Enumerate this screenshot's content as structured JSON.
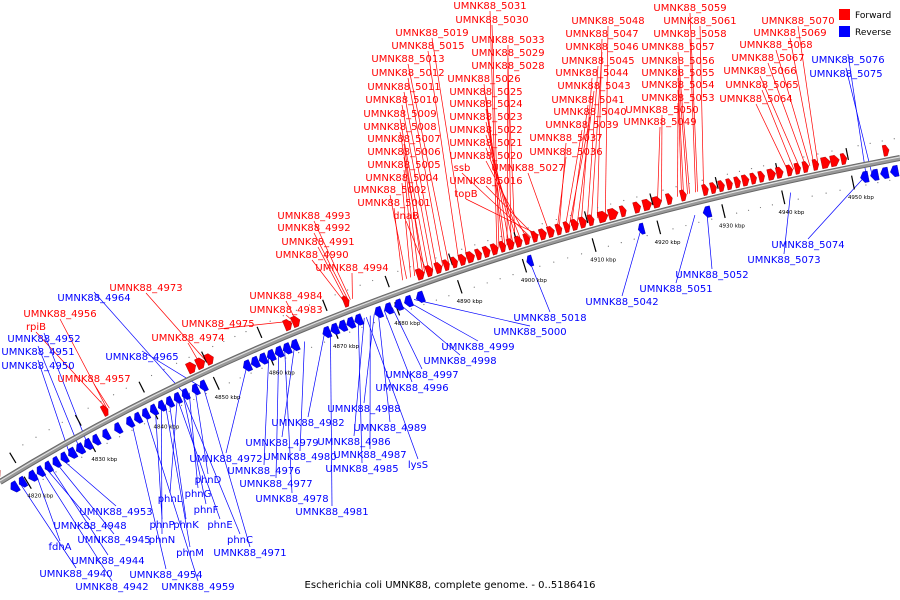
{
  "caption": "Escherichia coli UMNK88, complete genome. - 0..5186416",
  "legend": [
    {
      "label": "Forward",
      "color": "#ff0000"
    },
    {
      "label": "Reverse",
      "color": "#0000ff"
    }
  ],
  "colors": {
    "forward": "#ff0000",
    "reverse": "#0000ff",
    "backbone": "#999999"
  },
  "ticks": [
    "4820 kbp",
    "4830 kbp",
    "4840 kbp",
    "4850 kbp",
    "4860 kbp",
    "4870 kbp",
    "4880 kbp",
    "4890 kbp",
    "4900 kbp",
    "4910 kbp",
    "4920 kbp",
    "4930 kbp",
    "4940 kbp",
    "4950 kbp"
  ],
  "forward_labels": [
    "UMNK88_5031",
    "UMNK88_5030",
    "UMNK88_5059",
    "UMNK88_5048",
    "UMNK88_5061",
    "UMNK88_5070",
    "UMNK88_5019",
    "UMNK88_5047",
    "UMNK88_5058",
    "UMNK88_5069",
    "UMNK88_5033",
    "UMNK88_5015",
    "UMNK88_5046",
    "UMNK88_5057",
    "UMNK88_5068",
    "UMNK88_5029",
    "UMNK88_5013",
    "UMNK88_5045",
    "UMNK88_5056",
    "UMNK88_5067",
    "UMNK88_5028",
    "UMNK88_5012",
    "UMNK88_5044",
    "UMNK88_5055",
    "UMNK88_5066",
    "UMNK88_5026",
    "UMNK88_5011",
    "UMNK88_5043",
    "UMNK88_5054",
    "UMNK88_5065",
    "UMNK88_5025",
    "UMNK88_5010",
    "UMNK88_5041",
    "UMNK88_5053",
    "UMNK88_5064",
    "UMNK88_5024",
    "UMNK88_5009",
    "UMNK88_5040",
    "UMNK88_5050",
    "UMNK88_5023",
    "UMNK88_5008",
    "UMNK88_5039",
    "UMNK88_5049",
    "UMNK88_5022",
    "UMNK88_5007",
    "UMNK88_5037",
    "UMNK88_5021",
    "UMNK88_5006",
    "UMNK88_5036",
    "UMNK88_5020",
    "UMNK88_5005",
    "ssb",
    "UMNK88_5027",
    "UMNK88_5004",
    "UMNK88_5016",
    "UMNK88_5002",
    "topB",
    "UMNK88_5001",
    "UMNK88_4993",
    "dnaB",
    "UMNK88_4992",
    "UMNK88_4991",
    "UMNK88_4990",
    "UMNK88_4994",
    "UMNK88_4973",
    "UMNK88_4984",
    "UMNK88_4956",
    "UMNK88_4983",
    "rpiB",
    "UMNK88_4975",
    "UMNK88_4974",
    "UMNK88_4957"
  ],
  "reverse_labels": [
    "UMNK88_5076",
    "UMNK88_5075",
    "UMNK88_5074",
    "UMNK88_5073",
    "UMNK88_5052",
    "UMNK88_5051",
    "UMNK88_5042",
    "UMNK88_5018",
    "UMNK88_5000",
    "UMNK88_4999",
    "UMNK88_4998",
    "UMNK88_4997",
    "UMNK88_4996",
    "UMNK88_4964",
    "UMNK88_4952",
    "UMNK88_4951",
    "UMNK88_4965",
    "UMNK88_4950",
    "UMNK88_4988",
    "UMNK88_4989",
    "UMNK88_4982",
    "UMNK88_4986",
    "UMNK88_4987",
    "UMNK88_4979",
    "UMNK88_4980",
    "lysS",
    "UMNK88_4985",
    "UMNK88_4972",
    "UMNK88_4976",
    "UMNK88_4977",
    "UMNK88_4978",
    "UMNK88_4981",
    "phnD",
    "phnG",
    "phnL",
    "phnF",
    "phnK",
    "phnE",
    "UMNK88_4953",
    "phnP",
    "UMNK88_4948",
    "phnN",
    "phnC",
    "UMNK88_4945",
    "fdhA",
    "phnM",
    "UMNK88_4971",
    "UMNK88_4944",
    "UMNK88_4954",
    "UMNK88_4940",
    "UMNK88_4959",
    "UMNK88_4942"
  ]
}
